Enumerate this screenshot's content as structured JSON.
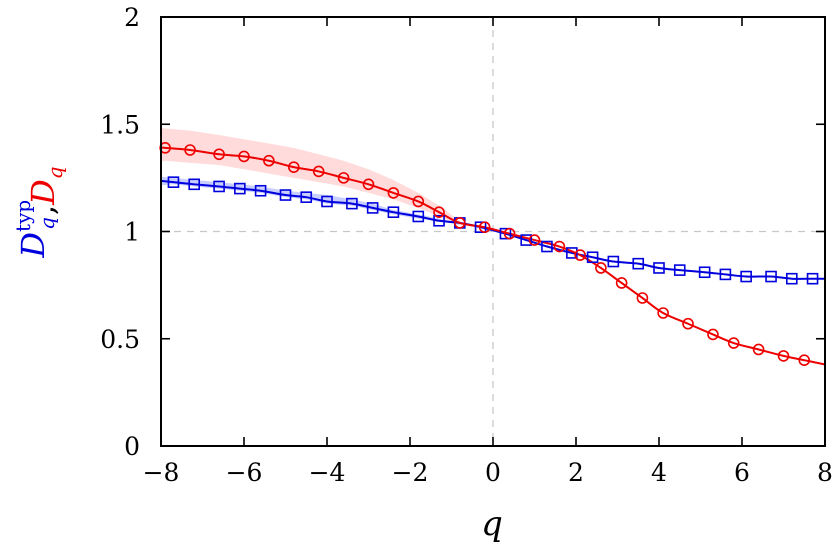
{
  "chart_data": {
    "type": "line",
    "title": "",
    "xlabel": "q",
    "ylabel_parts": [
      {
        "text": "D",
        "sub": "q",
        "sup": "typ",
        "color": "#0000dd"
      },
      {
        "text": ","
      },
      {
        "text": "D",
        "sub": "q",
        "color": "#ee0000"
      }
    ],
    "xlim": [
      -8,
      8
    ],
    "ylim": [
      0,
      2
    ],
    "xticks": [
      -8,
      -6,
      -4,
      -2,
      0,
      2,
      4,
      6,
      8
    ],
    "xtick_labels": [
      "−8",
      "−6",
      "−4",
      "−2",
      "0",
      "2",
      "4",
      "6",
      "8"
    ],
    "yticks": [
      0,
      0.5,
      1,
      1.5,
      2
    ],
    "ytick_labels": [
      "0",
      "0.5",
      "1",
      "1.5",
      "2"
    ],
    "reference_lines": {
      "x": 0,
      "y": 1
    },
    "series": [
      {
        "marker": "square",
        "color": "#0000dd",
        "band_color": "#aab4ff",
        "x": [
          -7.7,
          -7.2,
          -6.6,
          -6.1,
          -5.6,
          -5.0,
          -4.5,
          -4.0,
          -3.4,
          -2.9,
          -2.4,
          -1.8,
          -1.3,
          -0.8,
          -0.3,
          0.3,
          0.8,
          1.3,
          1.9,
          2.4,
          2.9,
          3.5,
          4.0,
          4.5,
          5.1,
          5.6,
          6.1,
          6.7,
          7.2,
          7.7
        ],
        "values": [
          1.23,
          1.22,
          1.21,
          1.2,
          1.19,
          1.17,
          1.16,
          1.14,
          1.13,
          1.11,
          1.09,
          1.07,
          1.05,
          1.04,
          1.02,
          0.99,
          0.96,
          0.93,
          0.9,
          0.88,
          0.86,
          0.85,
          0.83,
          0.82,
          0.81,
          0.8,
          0.79,
          0.79,
          0.78,
          0.78
        ],
        "band_upper": [
          1.25,
          1.24,
          1.23,
          1.22,
          1.21,
          1.19,
          1.18,
          1.17,
          1.15,
          1.13,
          1.1,
          1.08,
          1.06,
          1.04
        ],
        "band_lower": [
          1.22,
          1.21,
          1.2,
          1.19,
          1.18,
          1.16,
          1.15,
          1.13,
          1.12,
          1.1,
          1.08,
          1.06,
          1.05,
          1.03
        ]
      },
      {
        "marker": "circle",
        "color": "#ee0000",
        "band_color": "#ffc8c8",
        "x": [
          -7.9,
          -7.3,
          -6.6,
          -6.0,
          -5.4,
          -4.8,
          -4.2,
          -3.6,
          -3.0,
          -2.4,
          -1.8,
          -1.3,
          -0.8,
          -0.2,
          0.4,
          1.0,
          1.6,
          2.1,
          2.6,
          3.1,
          3.6,
          4.1,
          4.7,
          5.3,
          5.8,
          6.4,
          7.0,
          7.5
        ],
        "values": [
          1.39,
          1.38,
          1.36,
          1.35,
          1.33,
          1.3,
          1.28,
          1.25,
          1.22,
          1.18,
          1.14,
          1.09,
          1.04,
          1.02,
          0.99,
          0.96,
          0.93,
          0.89,
          0.83,
          0.76,
          0.69,
          0.62,
          0.57,
          0.52,
          0.48,
          0.45,
          0.42,
          0.4
        ],
        "band_upper": [
          1.48,
          1.47,
          1.45,
          1.43,
          1.41,
          1.39,
          1.36,
          1.33,
          1.29,
          1.24,
          1.18,
          1.12,
          1.05
        ],
        "band_lower": [
          1.33,
          1.32,
          1.31,
          1.29,
          1.27,
          1.25,
          1.23,
          1.21,
          1.18,
          1.15,
          1.11,
          1.07,
          1.03
        ]
      }
    ]
  }
}
